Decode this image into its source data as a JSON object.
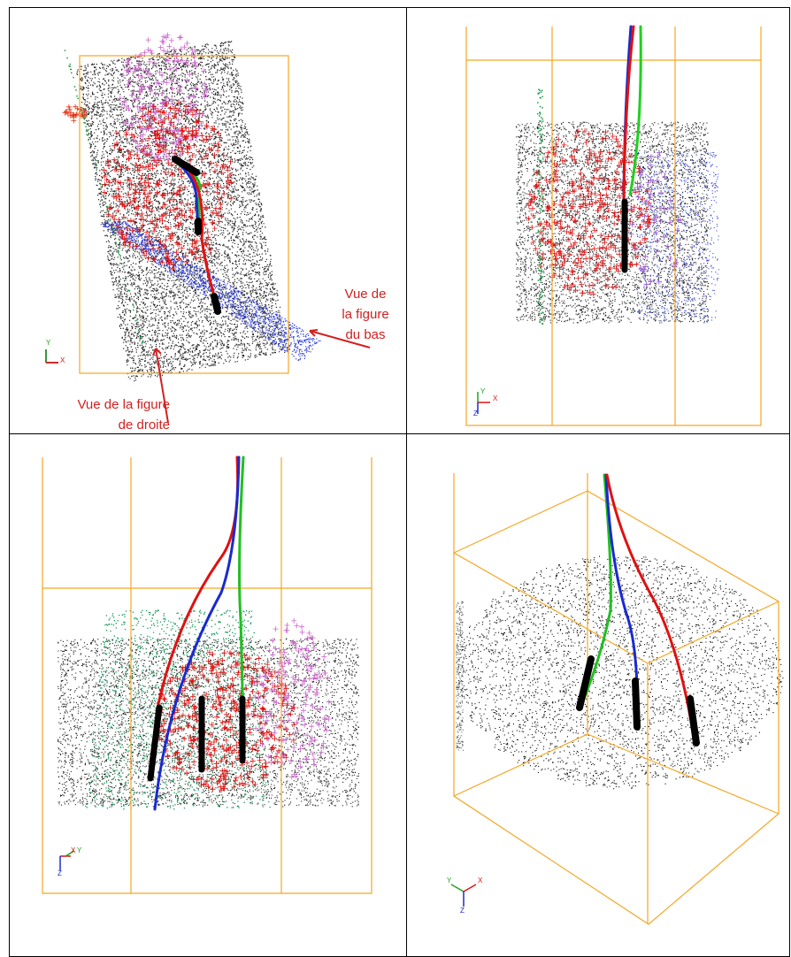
{
  "panels": [
    {
      "annotations": [
        {
          "lines": [
            "Vue de",
            "la figure",
            "du bas"
          ]
        },
        {
          "lines": [
            "Vue de la figure",
            "de droite"
          ]
        }
      ],
      "axes": {
        "x": "X",
        "y": "Y"
      }
    },
    {
      "axes": {
        "x": "X",
        "y": "Y",
        "z": "Z"
      }
    },
    {
      "axes": {
        "x": "X",
        "y": "Y",
        "z": "Z"
      }
    },
    {
      "axes": {
        "x": "X",
        "y": "Y",
        "z": "Z"
      }
    }
  ]
}
